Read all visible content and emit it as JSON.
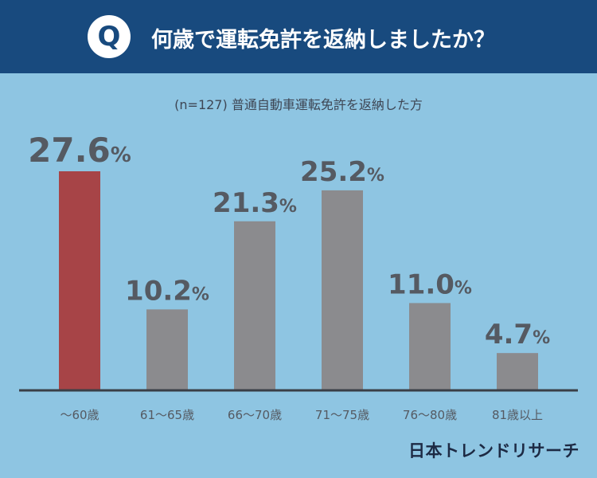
{
  "header": {
    "badge": "Q",
    "question": "何歳で運転免許を返納しましたか？"
  },
  "subtitle": "(n=127) 普通自動車運転免許を返納した方",
  "brand": "日本トレンドリサーチ",
  "colors": {
    "background": "#8ec5e2",
    "header": "#184a7e",
    "highlight_bar": "#a74447",
    "bar": "#8b8b8e",
    "value_text": "#555a62",
    "axis": "#3a3f47"
  },
  "chart_data": {
    "type": "bar",
    "categories": [
      "～60歳",
      "61～65歳",
      "66～70歳",
      "71～75歳",
      "76～80歳",
      "81歳以上"
    ],
    "values": [
      27.6,
      10.2,
      21.3,
      25.2,
      11.0,
      4.7
    ],
    "value_labels": [
      "27.6",
      "10.2",
      "21.3",
      "25.2",
      "11.0",
      "4.7"
    ],
    "unit": "%",
    "highlight_index": 0,
    "ylim": [
      0,
      27.6
    ],
    "grid": false,
    "legend": "none"
  }
}
